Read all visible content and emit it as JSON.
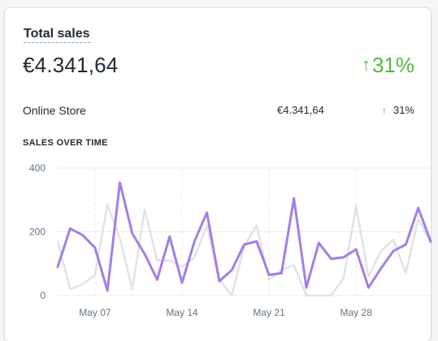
{
  "card": {
    "title": "Total sales",
    "total": "€4.341,64",
    "total_change": "31%"
  },
  "breakdown": {
    "label": "Online Store",
    "value": "€4.341,64",
    "change": "31%"
  },
  "section_title": "SALES OVER TIME",
  "colors": {
    "current": "#a37ee6",
    "previous": "#dfe3e8",
    "positive": "#50b83c",
    "grid": "#e9ebee"
  },
  "chart_data": {
    "type": "line",
    "ylim": [
      0,
      400
    ],
    "y_ticks": [
      "0",
      "200",
      "400"
    ],
    "x_ticks": [
      "May 07",
      "May 14",
      "May 21",
      "May 28"
    ],
    "series": [
      {
        "values": [
          170,
          20,
          35,
          65,
          285,
          180,
          20,
          270,
          110,
          110,
          90,
          120,
          220,
          50,
          0,
          155,
          220,
          50,
          80,
          95,
          0,
          0,
          0,
          55,
          280,
          60,
          140,
          175,
          70,
          240,
          165
        ]
      },
      {
        "values": [
          90,
          210,
          190,
          150,
          15,
          355,
          195,
          130,
          50,
          185,
          40,
          170,
          260,
          45,
          80,
          160,
          170,
          65,
          70,
          305,
          25,
          165,
          115,
          120,
          145,
          25,
          85,
          140,
          160,
          275,
          170
        ]
      }
    ]
  }
}
